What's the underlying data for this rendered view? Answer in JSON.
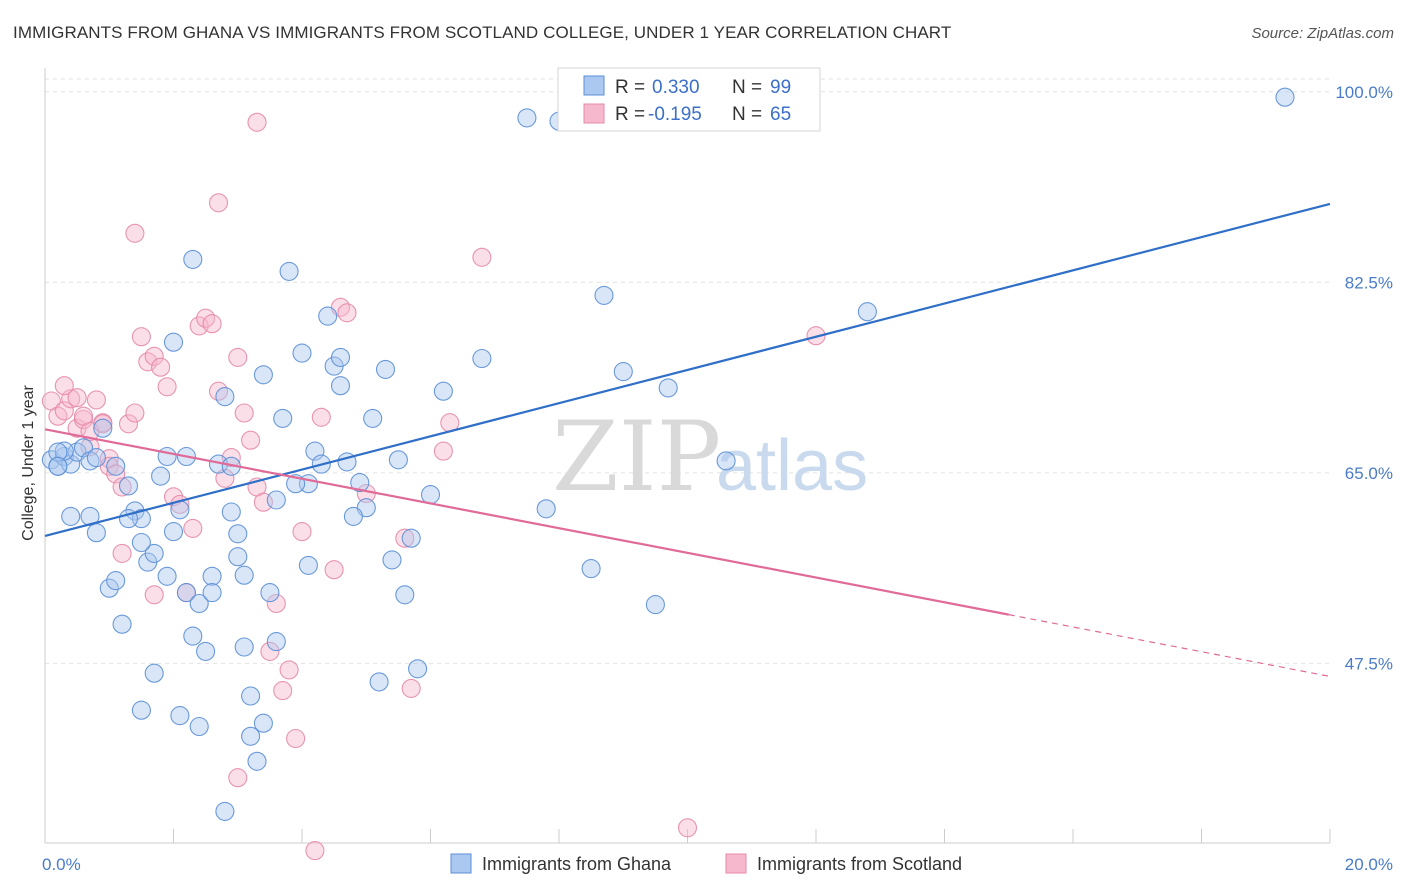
{
  "title": "IMMIGRANTS FROM GHANA VS IMMIGRANTS FROM SCOTLAND COLLEGE, UNDER 1 YEAR CORRELATION CHART",
  "source": "Source: ZipAtlas.com",
  "watermark": {
    "zip": "ZIP",
    "atlas": "atlas"
  },
  "legend": {
    "rows": [
      {
        "r_label": "R =",
        "r_value": "0.330",
        "n_label": "N =",
        "n_value": "99"
      },
      {
        "r_label": "R =",
        "r_value": "-0.195",
        "n_label": "N =",
        "n_value": "65"
      }
    ]
  },
  "colors": {
    "ghana_fill": "#aac8f0",
    "ghana_stroke": "#5b8fd6",
    "ghana_line": "#2f6fc8",
    "scotland_fill": "#f6b8cc",
    "scotland_stroke": "#e58aa8",
    "scotland_line": "#e06b98",
    "grid": "#e2e2e2",
    "tick_label": "#4a7cc7"
  },
  "chart_data": {
    "type": "scatter",
    "title": "IMMIGRANTS FROM GHANA VS IMMIGRANTS FROM SCOTLAND COLLEGE, UNDER 1 YEAR CORRELATION CHART",
    "xlabel": "",
    "ylabel": "College, Under 1 year",
    "xlim": [
      0,
      20
    ],
    "ylim": [
      31,
      102
    ],
    "x_tick_labels": [
      "0.0%",
      "20.0%"
    ],
    "y_ticks": [
      47.5,
      65.0,
      82.5,
      100.0
    ],
    "y_tick_labels": [
      "47.5%",
      "65.0%",
      "82.5%",
      "100.0%"
    ],
    "grid": true,
    "legend_placement": "top-center",
    "series": [
      {
        "name": "Immigrants from Ghana",
        "trend": {
          "x": [
            0,
            20
          ],
          "y": [
            59.2,
            89.7
          ],
          "dashed_from": null
        },
        "points": [
          [
            0.1,
            66.2
          ],
          [
            0.2,
            65.6
          ],
          [
            0.3,
            66.5
          ],
          [
            0.4,
            65.8
          ],
          [
            0.5,
            66.9
          ],
          [
            0.6,
            67.3
          ],
          [
            0.7,
            66.1
          ],
          [
            0.3,
            67.0
          ],
          [
            0.2,
            66.9
          ],
          [
            0.8,
            66.4
          ],
          [
            0.4,
            61.0
          ],
          [
            0.7,
            61.0
          ],
          [
            0.8,
            59.5
          ],
          [
            1.0,
            54.4
          ],
          [
            1.1,
            55.1
          ],
          [
            1.2,
            51.1
          ],
          [
            1.3,
            63.8
          ],
          [
            1.4,
            61.5
          ],
          [
            1.5,
            60.8
          ],
          [
            1.6,
            56.8
          ],
          [
            1.7,
            57.6
          ],
          [
            1.8,
            64.7
          ],
          [
            1.9,
            66.5
          ],
          [
            2.0,
            59.6
          ],
          [
            2.1,
            61.6
          ],
          [
            2.2,
            54.0
          ],
          [
            2.3,
            50.0
          ],
          [
            2.4,
            53.0
          ],
          [
            2.5,
            48.6
          ],
          [
            2.6,
            55.5
          ],
          [
            2.7,
            65.8
          ],
          [
            2.8,
            72.0
          ],
          [
            2.9,
            61.4
          ],
          [
            3.0,
            57.3
          ],
          [
            3.1,
            55.6
          ],
          [
            3.2,
            40.8
          ],
          [
            3.3,
            38.5
          ],
          [
            3.4,
            42.0
          ],
          [
            3.5,
            54.0
          ],
          [
            3.6,
            49.5
          ],
          [
            3.8,
            83.5
          ],
          [
            4.0,
            76.0
          ],
          [
            4.1,
            64.0
          ],
          [
            4.2,
            67.0
          ],
          [
            4.4,
            79.4
          ],
          [
            4.5,
            74.8
          ],
          [
            4.6,
            75.6
          ],
          [
            4.7,
            66.0
          ],
          [
            5.0,
            61.8
          ],
          [
            5.1,
            70.0
          ],
          [
            5.2,
            45.8
          ],
          [
            5.3,
            74.5
          ],
          [
            5.5,
            66.2
          ],
          [
            5.6,
            53.8
          ],
          [
            5.8,
            47.0
          ],
          [
            6.0,
            63.0
          ],
          [
            1.1,
            65.6
          ],
          [
            1.3,
            60.8
          ],
          [
            1.7,
            46.6
          ],
          [
            1.9,
            55.5
          ],
          [
            2.0,
            77.0
          ],
          [
            2.3,
            84.6
          ],
          [
            2.6,
            54.0
          ],
          [
            2.9,
            65.6
          ],
          [
            3.0,
            59.4
          ],
          [
            3.1,
            49.0
          ],
          [
            3.2,
            44.5
          ],
          [
            3.4,
            74.0
          ],
          [
            3.7,
            70.0
          ],
          [
            3.9,
            64.0
          ],
          [
            4.3,
            65.8
          ],
          [
            4.6,
            73.0
          ],
          [
            4.8,
            61.0
          ],
          [
            4.9,
            64.1
          ],
          [
            5.4,
            57.0
          ],
          [
            5.7,
            59.0
          ],
          [
            6.2,
            72.5
          ],
          [
            6.8,
            75.5
          ],
          [
            7.5,
            97.6
          ],
          [
            8.0,
            97.3
          ],
          [
            7.8,
            61.7
          ],
          [
            8.5,
            56.2
          ],
          [
            9.5,
            52.9
          ],
          [
            9.0,
            74.3
          ],
          [
            9.7,
            72.8
          ],
          [
            10.6,
            66.1
          ],
          [
            8.7,
            81.3
          ],
          [
            12.8,
            79.8
          ],
          [
            1.5,
            43.2
          ],
          [
            2.1,
            42.7
          ],
          [
            2.4,
            41.7
          ],
          [
            2.8,
            33.9
          ],
          [
            0.9,
            69.1
          ],
          [
            1.5,
            58.6
          ],
          [
            0.2,
            65.6
          ],
          [
            2.2,
            66.5
          ],
          [
            3.6,
            62.5
          ],
          [
            4.1,
            56.5
          ],
          [
            19.3,
            99.5
          ]
        ]
      },
      {
        "name": "Immigrants from Scotland",
        "trend": {
          "x": [
            0,
            20
          ],
          "y": [
            69.0,
            46.3
          ],
          "dashed_from": 15
        },
        "points": [
          [
            0.1,
            71.6
          ],
          [
            0.2,
            70.2
          ],
          [
            0.3,
            70.7
          ],
          [
            0.4,
            71.8
          ],
          [
            0.5,
            69.1
          ],
          [
            0.6,
            69.9
          ],
          [
            0.7,
            67.4
          ],
          [
            0.8,
            71.7
          ],
          [
            0.9,
            69.6
          ],
          [
            1.0,
            66.3
          ],
          [
            0.3,
            73.0
          ],
          [
            0.5,
            71.9
          ],
          [
            0.6,
            70.2
          ],
          [
            0.7,
            68.8
          ],
          [
            0.9,
            69.5
          ],
          [
            1.0,
            65.6
          ],
          [
            1.1,
            64.9
          ],
          [
            1.2,
            63.7
          ],
          [
            1.3,
            69.5
          ],
          [
            1.4,
            70.5
          ],
          [
            1.5,
            77.5
          ],
          [
            1.6,
            75.2
          ],
          [
            1.7,
            75.7
          ],
          [
            1.8,
            74.7
          ],
          [
            1.9,
            72.9
          ],
          [
            2.0,
            62.8
          ],
          [
            2.1,
            62.1
          ],
          [
            2.2,
            54.0
          ],
          [
            2.3,
            59.9
          ],
          [
            2.4,
            78.5
          ],
          [
            2.5,
            79.2
          ],
          [
            2.6,
            78.7
          ],
          [
            2.7,
            72.5
          ],
          [
            2.8,
            64.5
          ],
          [
            2.9,
            66.4
          ],
          [
            3.0,
            75.6
          ],
          [
            3.1,
            70.5
          ],
          [
            3.2,
            68.0
          ],
          [
            3.3,
            63.7
          ],
          [
            3.4,
            62.3
          ],
          [
            3.5,
            48.6
          ],
          [
            3.6,
            53.0
          ],
          [
            3.7,
            45.0
          ],
          [
            3.8,
            46.9
          ],
          [
            3.9,
            40.6
          ],
          [
            4.0,
            59.6
          ],
          [
            4.2,
            30.3
          ],
          [
            1.4,
            87.0
          ],
          [
            2.7,
            89.8
          ],
          [
            3.3,
            97.2
          ],
          [
            4.3,
            70.1
          ],
          [
            4.5,
            56.1
          ],
          [
            4.6,
            80.2
          ],
          [
            4.7,
            79.7
          ],
          [
            5.0,
            63.1
          ],
          [
            5.6,
            59.0
          ],
          [
            5.7,
            45.2
          ],
          [
            6.2,
            67.0
          ],
          [
            6.3,
            69.6
          ],
          [
            6.8,
            84.8
          ],
          [
            10.0,
            32.4
          ],
          [
            12.0,
            77.6
          ],
          [
            1.2,
            57.6
          ],
          [
            1.7,
            53.8
          ],
          [
            3.0,
            37.0
          ]
        ]
      }
    ]
  },
  "bottom_legend": [
    "Immigrants from Ghana",
    "Immigrants from Scotland"
  ]
}
